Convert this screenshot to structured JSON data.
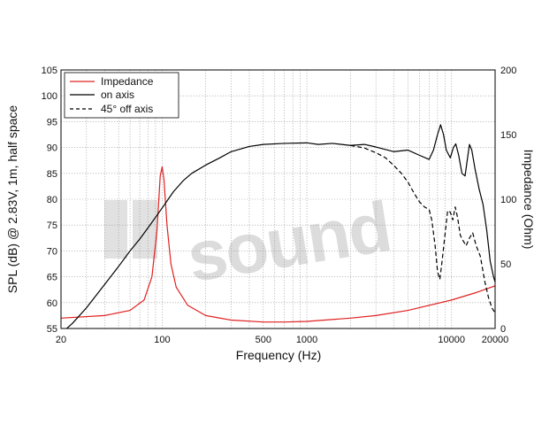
{
  "chart_data": {
    "type": "line",
    "x_scale": "log",
    "xlim": [
      20,
      20000
    ],
    "ylim_left": [
      55,
      105
    ],
    "ylim_right": [
      0,
      200
    ],
    "xlabel": "Frequency (Hz)",
    "ylabel_left": "SPL (dB) @ 2.83V, 1m, half space",
    "ylabel_right": "Impedance (Ohm)",
    "x_tick_labels": [
      "20",
      "100",
      "500",
      "1000",
      "10000",
      "20000"
    ],
    "x_tick_values": [
      20,
      100,
      500,
      1000,
      10000,
      20000
    ],
    "y_left_ticks": [
      55,
      60,
      65,
      70,
      75,
      80,
      85,
      90,
      95,
      100,
      105
    ],
    "y_right_ticks": [
      0,
      50,
      100,
      150,
      200
    ],
    "grid": true,
    "legend_position": "top-left",
    "watermark": "sound",
    "colors": {
      "impedance": "#e02020",
      "on_axis": "#000000",
      "off_axis": "#000000",
      "grid": "#9a9a9a"
    },
    "series": [
      {
        "name": "Impedance",
        "axis": "right",
        "style": "solid",
        "points": [
          [
            20,
            8
          ],
          [
            40,
            10
          ],
          [
            60,
            14
          ],
          [
            75,
            22
          ],
          [
            85,
            40
          ],
          [
            92,
            75
          ],
          [
            97,
            118
          ],
          [
            100,
            125
          ],
          [
            103,
            115
          ],
          [
            108,
            80
          ],
          [
            115,
            50
          ],
          [
            125,
            32
          ],
          [
            150,
            18
          ],
          [
            200,
            10
          ],
          [
            300,
            6.5
          ],
          [
            500,
            5
          ],
          [
            700,
            5
          ],
          [
            1000,
            5.5
          ],
          [
            2000,
            8
          ],
          [
            3000,
            10
          ],
          [
            5000,
            14
          ],
          [
            10000,
            22
          ],
          [
            15000,
            28
          ],
          [
            20000,
            33
          ]
        ]
      },
      {
        "name": "on axis",
        "axis": "left",
        "style": "solid",
        "points": [
          [
            20,
            54
          ],
          [
            24,
            56
          ],
          [
            30,
            59
          ],
          [
            40,
            63.5
          ],
          [
            50,
            67
          ],
          [
            60,
            70
          ],
          [
            70,
            72.3
          ],
          [
            80,
            74.5
          ],
          [
            90,
            76.5
          ],
          [
            100,
            78.3
          ],
          [
            120,
            81.5
          ],
          [
            140,
            83.6
          ],
          [
            160,
            85
          ],
          [
            200,
            86.6
          ],
          [
            250,
            88
          ],
          [
            300,
            89.2
          ],
          [
            400,
            90.2
          ],
          [
            500,
            90.6
          ],
          [
            700,
            90.8
          ],
          [
            1000,
            90.9
          ],
          [
            1200,
            90.6
          ],
          [
            1500,
            90.8
          ],
          [
            2000,
            90.4
          ],
          [
            2500,
            90.6
          ],
          [
            3000,
            90.1
          ],
          [
            4000,
            89.2
          ],
          [
            5000,
            89.5
          ],
          [
            6000,
            88.5
          ],
          [
            7000,
            87.7
          ],
          [
            7500,
            89.5
          ],
          [
            8000,
            92.5
          ],
          [
            8400,
            94.4
          ],
          [
            8800,
            92.5
          ],
          [
            9200,
            89.5
          ],
          [
            9800,
            88
          ],
          [
            10300,
            90
          ],
          [
            10700,
            90.7
          ],
          [
            11200,
            88.5
          ],
          [
            11800,
            85
          ],
          [
            12400,
            84.5
          ],
          [
            12900,
            88
          ],
          [
            13300,
            90.6
          ],
          [
            13800,
            89.5
          ],
          [
            14500,
            86
          ],
          [
            15500,
            82
          ],
          [
            16500,
            79
          ],
          [
            17500,
            74
          ],
          [
            18500,
            68
          ],
          [
            19500,
            65
          ],
          [
            20000,
            64
          ]
        ]
      },
      {
        "name": "45° off axis",
        "axis": "left",
        "style": "dashed",
        "points": [
          [
            2000,
            90.4
          ],
          [
            2500,
            89.9
          ],
          [
            3000,
            89
          ],
          [
            3500,
            88
          ],
          [
            4000,
            86.5
          ],
          [
            4500,
            85
          ],
          [
            5000,
            83.3
          ],
          [
            5500,
            81.2
          ],
          [
            6000,
            79.5
          ],
          [
            6500,
            78.5
          ],
          [
            7000,
            78
          ],
          [
            7300,
            76
          ],
          [
            7700,
            71
          ],
          [
            8000,
            66
          ],
          [
            8300,
            64.5
          ],
          [
            8600,
            68
          ],
          [
            9000,
            73
          ],
          [
            9400,
            77.8
          ],
          [
            9800,
            77.5
          ],
          [
            10200,
            76
          ],
          [
            10600,
            78.5
          ],
          [
            11000,
            76.5
          ],
          [
            11500,
            73
          ],
          [
            12000,
            72
          ],
          [
            12600,
            71
          ],
          [
            13300,
            72.5
          ],
          [
            14000,
            73.5
          ],
          [
            14800,
            71
          ],
          [
            15800,
            69
          ],
          [
            17000,
            64
          ],
          [
            18000,
            61
          ],
          [
            19000,
            59
          ],
          [
            20000,
            58
          ]
        ]
      }
    ]
  }
}
